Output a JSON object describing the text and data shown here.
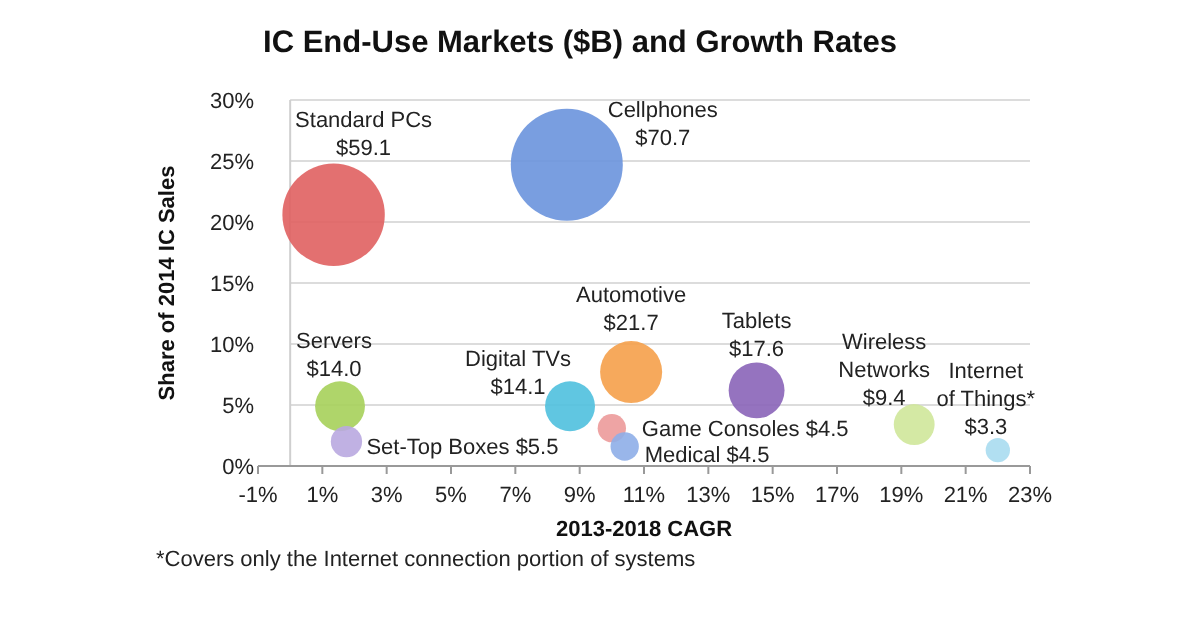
{
  "chart_data": {
    "type": "bubble",
    "title": "IC End-Use Markets ($B) and Growth Rates",
    "xlabel": "2013-2018 CAGR",
    "ylabel": "Share of 2014 IC Sales",
    "x": [
      1.35,
      8.6,
      1.55,
      1.75,
      8.7,
      10.6,
      14.5,
      10.0,
      10.4,
      19.4,
      22.0
    ],
    "values": [
      20.6,
      24.7,
      4.9,
      2.0,
      4.9,
      7.7,
      6.2,
      3.1,
      1.6,
      3.4,
      1.3
    ],
    "sizes": [
      0.836,
      1,
      0.198,
      0.078,
      0.199,
      0.307,
      0.249,
      0.064,
      0.064,
      0.133,
      0.047
    ],
    "colors": [
      "#e06060",
      "#6a93dd",
      "#a6d05a",
      "#b9a8e0",
      "#4fc0de",
      "#f5a04a",
      "#8a64b8",
      "#ec9a9a",
      "#8eaee8",
      "#cfe79a",
      "#a8dcf0"
    ],
    "xlim": [
      -1,
      23
    ],
    "xticks": [
      {
        "value": -1,
        "label": "-1%"
      },
      {
        "value": 1,
        "label": "1%"
      },
      {
        "value": 3,
        "label": "3%"
      },
      {
        "value": 5,
        "label": "5%"
      },
      {
        "value": 7,
        "label": "7%"
      },
      {
        "value": 9,
        "label": "9%"
      },
      {
        "value": 11,
        "label": "11%"
      },
      {
        "value": 13,
        "label": "13%"
      },
      {
        "value": 15,
        "label": "15%"
      },
      {
        "value": 17,
        "label": "17%"
      },
      {
        "value": 19,
        "label": "19%"
      },
      {
        "value": 21,
        "label": "21%"
      },
      {
        "value": 23,
        "label": "23%"
      }
    ],
    "ylim": [
      0,
      30
    ],
    "yticks": [
      {
        "value": 0,
        "label": "0%"
      },
      {
        "value": 5,
        "label": "5%"
      },
      {
        "value": 10,
        "label": "10%"
      },
      {
        "value": 15,
        "label": "15%"
      },
      {
        "value": 20,
        "label": "20%"
      },
      {
        "value": 25,
        "label": "25%"
      },
      {
        "value": 30,
        "label": "30%"
      }
    ],
    "grid": "y",
    "annotations": [
      {
        "text": "Standard PCs\n$59.1",
        "x": 1.35,
        "y": 20.6
      },
      {
        "text": "Cellphones\n$70.7",
        "x": 8.6,
        "y": 24.7
      },
      {
        "text": "Servers\n$14.0",
        "x": 1.55,
        "y": 4.9
      },
      {
        "text": "Set-Top Boxes $5.5",
        "x": 1.75,
        "y": 2.0
      },
      {
        "text": "Digital TVs\n$14.1",
        "x": 8.7,
        "y": 4.9
      },
      {
        "text": "Automotive\n$21.7",
        "x": 10.6,
        "y": 7.7
      },
      {
        "text": "Tablets\n$17.6",
        "x": 14.5,
        "y": 6.2
      },
      {
        "text": "Game Consoles $4.5",
        "x": 10.0,
        "y": 3.1
      },
      {
        "text": "Medical $4.5",
        "x": 10.4,
        "y": 1.6
      },
      {
        "text": "Wireless\nNetworks\n$9.4",
        "x": 19.4,
        "y": 3.4
      },
      {
        "text": "Internet\nof Things*\n$3.3",
        "x": 22.0,
        "y": 1.3
      },
      "*Covers only the Internet connection portion of systems"
    ]
  }
}
